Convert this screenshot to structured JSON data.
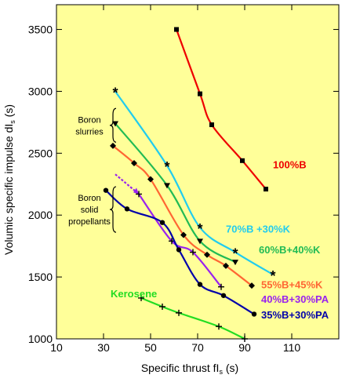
{
  "chart_data": {
    "type": "line",
    "title": "",
    "xlabel": "Specific thrust fI",
    "xlabel_subscript": "s",
    "xlabel_unit": " (s)",
    "ylabel": "Volumic specific impulse dI",
    "ylabel_subscript": "s",
    "ylabel_unit": " (s)",
    "xlim": [
      10,
      130
    ],
    "ylim": [
      1000,
      3700
    ],
    "xticks": [
      10,
      30,
      50,
      70,
      90,
      110
    ],
    "yticks": [
      1000,
      1500,
      2000,
      2500,
      3000,
      3500
    ],
    "grid": false,
    "background": "#ffff99",
    "series": [
      {
        "name": "100%B",
        "color": "#ee0000",
        "marker": "square",
        "points": [
          [
            61,
            3500
          ],
          [
            71,
            2980
          ],
          [
            76,
            2730
          ],
          [
            89,
            2440
          ],
          [
            99,
            2210
          ]
        ],
        "label_xy": [
          102,
          2380
        ]
      },
      {
        "name": "70%B +30%K",
        "color": "#22ccee",
        "marker": "star",
        "points": [
          [
            35,
            3000
          ],
          [
            57,
            2400
          ],
          [
            71,
            1900
          ],
          [
            86,
            1700
          ],
          [
            102,
            1520
          ]
        ],
        "label_xy": [
          82,
          1860
        ]
      },
      {
        "name": "60%B+40%K",
        "color": "#22bb55",
        "marker": "triangle",
        "points": [
          [
            35,
            2740
          ],
          [
            57,
            2240
          ],
          [
            71,
            1790
          ],
          [
            86,
            1620
          ]
        ],
        "label_xy": [
          96,
          1690
        ]
      },
      {
        "name": "55%B+45%K",
        "color": "#ff6633",
        "marker": "diamond",
        "points": [
          [
            34,
            2560
          ],
          [
            43,
            2420
          ],
          [
            50,
            2290
          ],
          [
            64,
            1840
          ],
          [
            74,
            1680
          ],
          [
            82,
            1590
          ],
          [
            93,
            1430
          ]
        ],
        "label_xy": [
          97,
          1410
        ]
      },
      {
        "name": "40%B+30%PA",
        "color": "#9922ee",
        "marker": "plus",
        "points": [
          [
            45,
            2170
          ],
          [
            59,
            1790
          ],
          [
            68,
            1700
          ],
          [
            80,
            1420
          ]
        ],
        "label_xy": [
          97,
          1290
        ],
        "dashed_start": [
          [
            35,
            2330
          ],
          [
            45,
            2170
          ]
        ]
      },
      {
        "name": "35%B+30%PA",
        "color": "#0000aa",
        "marker": "circle",
        "points": [
          [
            31,
            2200
          ],
          [
            40,
            2050
          ],
          [
            55,
            1940
          ],
          [
            62,
            1720
          ],
          [
            71,
            1440
          ],
          [
            81,
            1350
          ],
          [
            94,
            1200
          ]
        ],
        "label_xy": [
          97,
          1165
        ]
      },
      {
        "name": "Kerosene",
        "color": "#22dd22",
        "marker": "plus",
        "points": [
          [
            46,
            1330
          ],
          [
            55,
            1260
          ],
          [
            62,
            1210
          ],
          [
            79,
            1100
          ],
          [
            90,
            1000
          ]
        ],
        "label_xy": [
          33,
          1335
        ]
      }
    ],
    "annotations": [
      {
        "text": [
          "Boron",
          "slurries"
        ],
        "xy": [
          22,
          2700
        ]
      },
      {
        "text": [
          "Boron",
          "solid",
          "propellants"
        ],
        "xy": [
          22,
          2020
        ]
      }
    ]
  }
}
